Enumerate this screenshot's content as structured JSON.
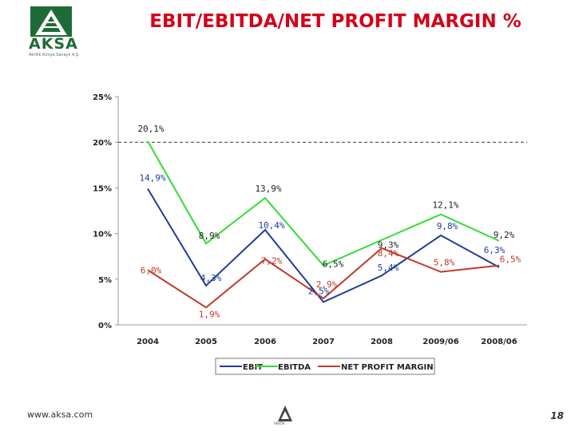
{
  "header": {
    "logo_text": "AKSA",
    "logo_subtitle": "Akrilik Kimya Sanayii A.Ş.",
    "title": "EBIT/EBITDA/NET PROFIT MARGIN %"
  },
  "footer": {
    "url": "www.aksa.com",
    "page_number": "18",
    "bottom_logo_text": "AKKÖK"
  },
  "colors": {
    "title": "#d4001a",
    "ebit": "#1f3d99",
    "ebitda": "#33dd33",
    "net_profit": "#c0392b",
    "logo": "#1f6b37"
  },
  "chart_data": {
    "type": "line",
    "categories": [
      "2004",
      "2005",
      "2006",
      "2007",
      "2008",
      "2009/06",
      "2008/06"
    ],
    "ylim": [
      0,
      25
    ],
    "yticks": [
      "0%",
      "5%",
      "10%",
      "15%",
      "20%",
      "25%"
    ],
    "reference_line": 20,
    "grid": false,
    "legend_position": "bottom",
    "series": [
      {
        "name": "EBIT",
        "values": [
          14.9,
          4.3,
          10.4,
          2.5,
          5.4,
          9.8,
          6.3
        ],
        "labels": [
          "14,9%",
          "4,3%",
          "10,4%",
          "2,5%",
          "5,4%",
          "9,8%",
          "6,3%"
        ]
      },
      {
        "name": "EBITDA",
        "values": [
          20.1,
          8.9,
          13.9,
          6.5,
          9.3,
          12.1,
          9.2
        ],
        "labels": [
          "20,1%",
          "8,9%",
          "13,9%",
          "6,5%",
          "9,3%",
          "12,1%",
          "9,2%"
        ]
      },
      {
        "name": "NET PROFIT MARGIN",
        "values": [
          6.0,
          1.9,
          7.2,
          2.9,
          8.4,
          5.8,
          6.5
        ],
        "labels": [
          "6,0%",
          "1,9%",
          "7,2%",
          "2,9%",
          "8,4%",
          "5,8%",
          "6,5%"
        ]
      }
    ]
  }
}
